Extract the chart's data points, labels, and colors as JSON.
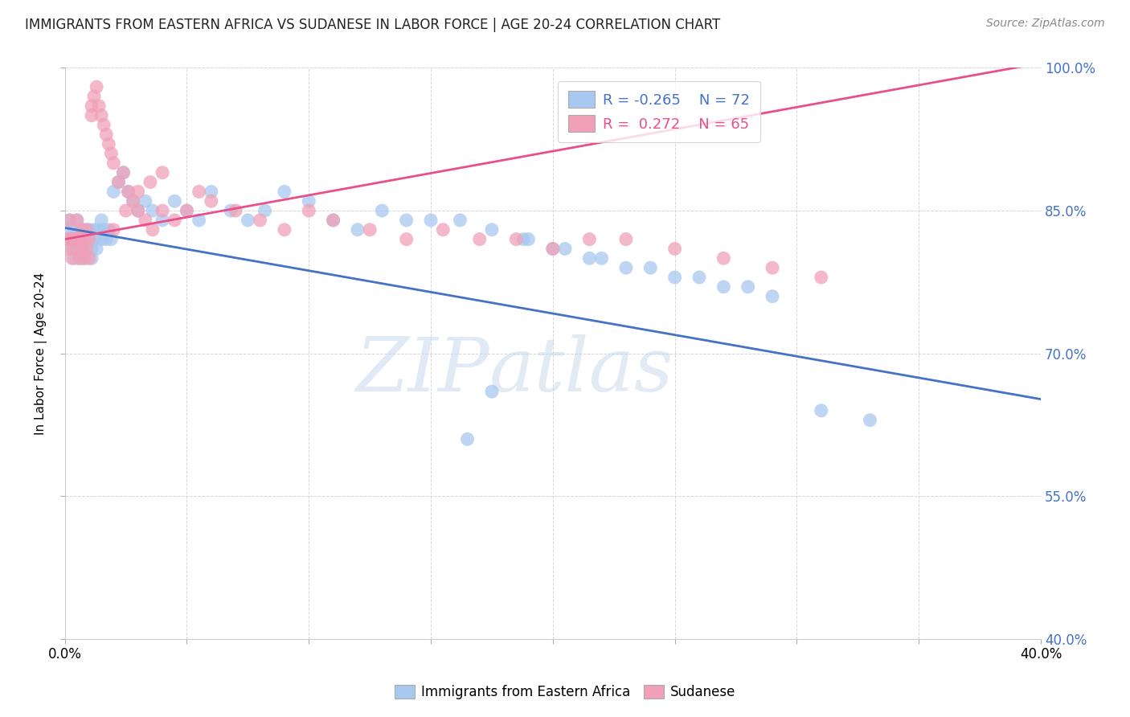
{
  "title": "IMMIGRANTS FROM EASTERN AFRICA VS SUDANESE IN LABOR FORCE | AGE 20-24 CORRELATION CHART",
  "source": "Source: ZipAtlas.com",
  "ylabel": "In Labor Force | Age 20-24",
  "legend_label_blue": "Immigrants from Eastern Africa",
  "legend_label_pink": "Sudanese",
  "R_blue": -0.265,
  "N_blue": 72,
  "R_pink": 0.272,
  "N_pink": 65,
  "xlim": [
    0.0,
    0.4
  ],
  "ylim": [
    0.4,
    1.0
  ],
  "xtick_labels_show": [
    "0.0%",
    "40.0%"
  ],
  "yticks": [
    0.4,
    0.55,
    0.7,
    0.85,
    1.0
  ],
  "color_blue": "#a8c8f0",
  "color_pink": "#f0a0b8",
  "line_color_blue": "#4472c4",
  "line_color_pink": "#e8508c",
  "watermark_zip": "ZIP",
  "watermark_atlas": "atlas",
  "blue_x": [
    0.001,
    0.002,
    0.003,
    0.003,
    0.004,
    0.004,
    0.005,
    0.005,
    0.006,
    0.006,
    0.007,
    0.007,
    0.008,
    0.008,
    0.009,
    0.009,
    0.01,
    0.01,
    0.011,
    0.011,
    0.012,
    0.012,
    0.013,
    0.014,
    0.015,
    0.015,
    0.016,
    0.017,
    0.018,
    0.019,
    0.02,
    0.022,
    0.024,
    0.026,
    0.028,
    0.03,
    0.033,
    0.036,
    0.04,
    0.045,
    0.05,
    0.055,
    0.06,
    0.068,
    0.075,
    0.082,
    0.09,
    0.1,
    0.11,
    0.12,
    0.13,
    0.14,
    0.15,
    0.162,
    0.175,
    0.188,
    0.2,
    0.215,
    0.23,
    0.25,
    0.27,
    0.29,
    0.31,
    0.33,
    0.19,
    0.205,
    0.22,
    0.24,
    0.26,
    0.28,
    0.175,
    0.165
  ],
  "blue_y": [
    0.83,
    0.84,
    0.82,
    0.81,
    0.83,
    0.8,
    0.84,
    0.81,
    0.83,
    0.8,
    0.82,
    0.81,
    0.83,
    0.8,
    0.82,
    0.81,
    0.83,
    0.82,
    0.81,
    0.8,
    0.83,
    0.82,
    0.81,
    0.83,
    0.84,
    0.82,
    0.83,
    0.82,
    0.83,
    0.82,
    0.87,
    0.88,
    0.89,
    0.87,
    0.86,
    0.85,
    0.86,
    0.85,
    0.84,
    0.86,
    0.85,
    0.84,
    0.87,
    0.85,
    0.84,
    0.85,
    0.87,
    0.86,
    0.84,
    0.83,
    0.85,
    0.84,
    0.84,
    0.84,
    0.83,
    0.82,
    0.81,
    0.8,
    0.79,
    0.78,
    0.77,
    0.76,
    0.64,
    0.63,
    0.82,
    0.81,
    0.8,
    0.79,
    0.78,
    0.77,
    0.66,
    0.61
  ],
  "pink_x": [
    0.001,
    0.001,
    0.002,
    0.002,
    0.003,
    0.003,
    0.004,
    0.004,
    0.005,
    0.005,
    0.006,
    0.006,
    0.007,
    0.007,
    0.008,
    0.008,
    0.009,
    0.009,
    0.01,
    0.01,
    0.011,
    0.011,
    0.012,
    0.013,
    0.014,
    0.015,
    0.016,
    0.017,
    0.018,
    0.019,
    0.02,
    0.022,
    0.024,
    0.026,
    0.028,
    0.03,
    0.033,
    0.036,
    0.04,
    0.045,
    0.05,
    0.055,
    0.06,
    0.07,
    0.08,
    0.09,
    0.1,
    0.11,
    0.125,
    0.14,
    0.155,
    0.17,
    0.185,
    0.2,
    0.215,
    0.23,
    0.25,
    0.27,
    0.29,
    0.31,
    0.02,
    0.025,
    0.03,
    0.035,
    0.04
  ],
  "pink_y": [
    0.82,
    0.81,
    0.84,
    0.82,
    0.82,
    0.8,
    0.82,
    0.81,
    0.84,
    0.82,
    0.82,
    0.8,
    0.83,
    0.81,
    0.82,
    0.8,
    0.83,
    0.81,
    0.82,
    0.8,
    0.96,
    0.95,
    0.97,
    0.98,
    0.96,
    0.95,
    0.94,
    0.93,
    0.92,
    0.91,
    0.9,
    0.88,
    0.89,
    0.87,
    0.86,
    0.85,
    0.84,
    0.83,
    0.85,
    0.84,
    0.85,
    0.87,
    0.86,
    0.85,
    0.84,
    0.83,
    0.85,
    0.84,
    0.83,
    0.82,
    0.83,
    0.82,
    0.82,
    0.81,
    0.82,
    0.82,
    0.81,
    0.8,
    0.79,
    0.78,
    0.83,
    0.85,
    0.87,
    0.88,
    0.89
  ]
}
